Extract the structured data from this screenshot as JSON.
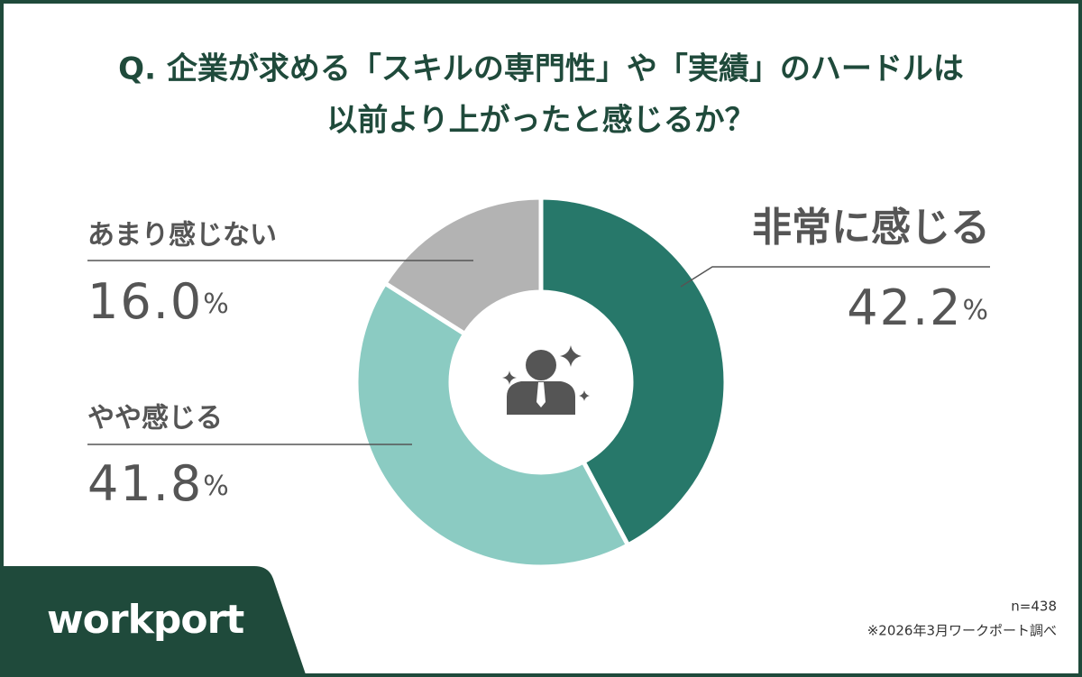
{
  "chart_data": {
    "type": "pie",
    "donut": true,
    "title": [
      "Q. 企業が求める「スキルの専門性」や「実績」のハードルは",
      "以前より上がったと感じるか？"
    ],
    "categories": [
      "非常に感じる",
      "やや感じる",
      "あまり感じない"
    ],
    "values": [
      42.2,
      41.8,
      16.0
    ],
    "value_labels": [
      "42.2%",
      "41.8%",
      "16.0%"
    ],
    "colors": [
      "#27786a",
      "#8bcbc2",
      "#b3b3b3"
    ]
  },
  "sample_size": "n=438",
  "source": "※2026年3月ワークポート調べ",
  "brand": "workport"
}
